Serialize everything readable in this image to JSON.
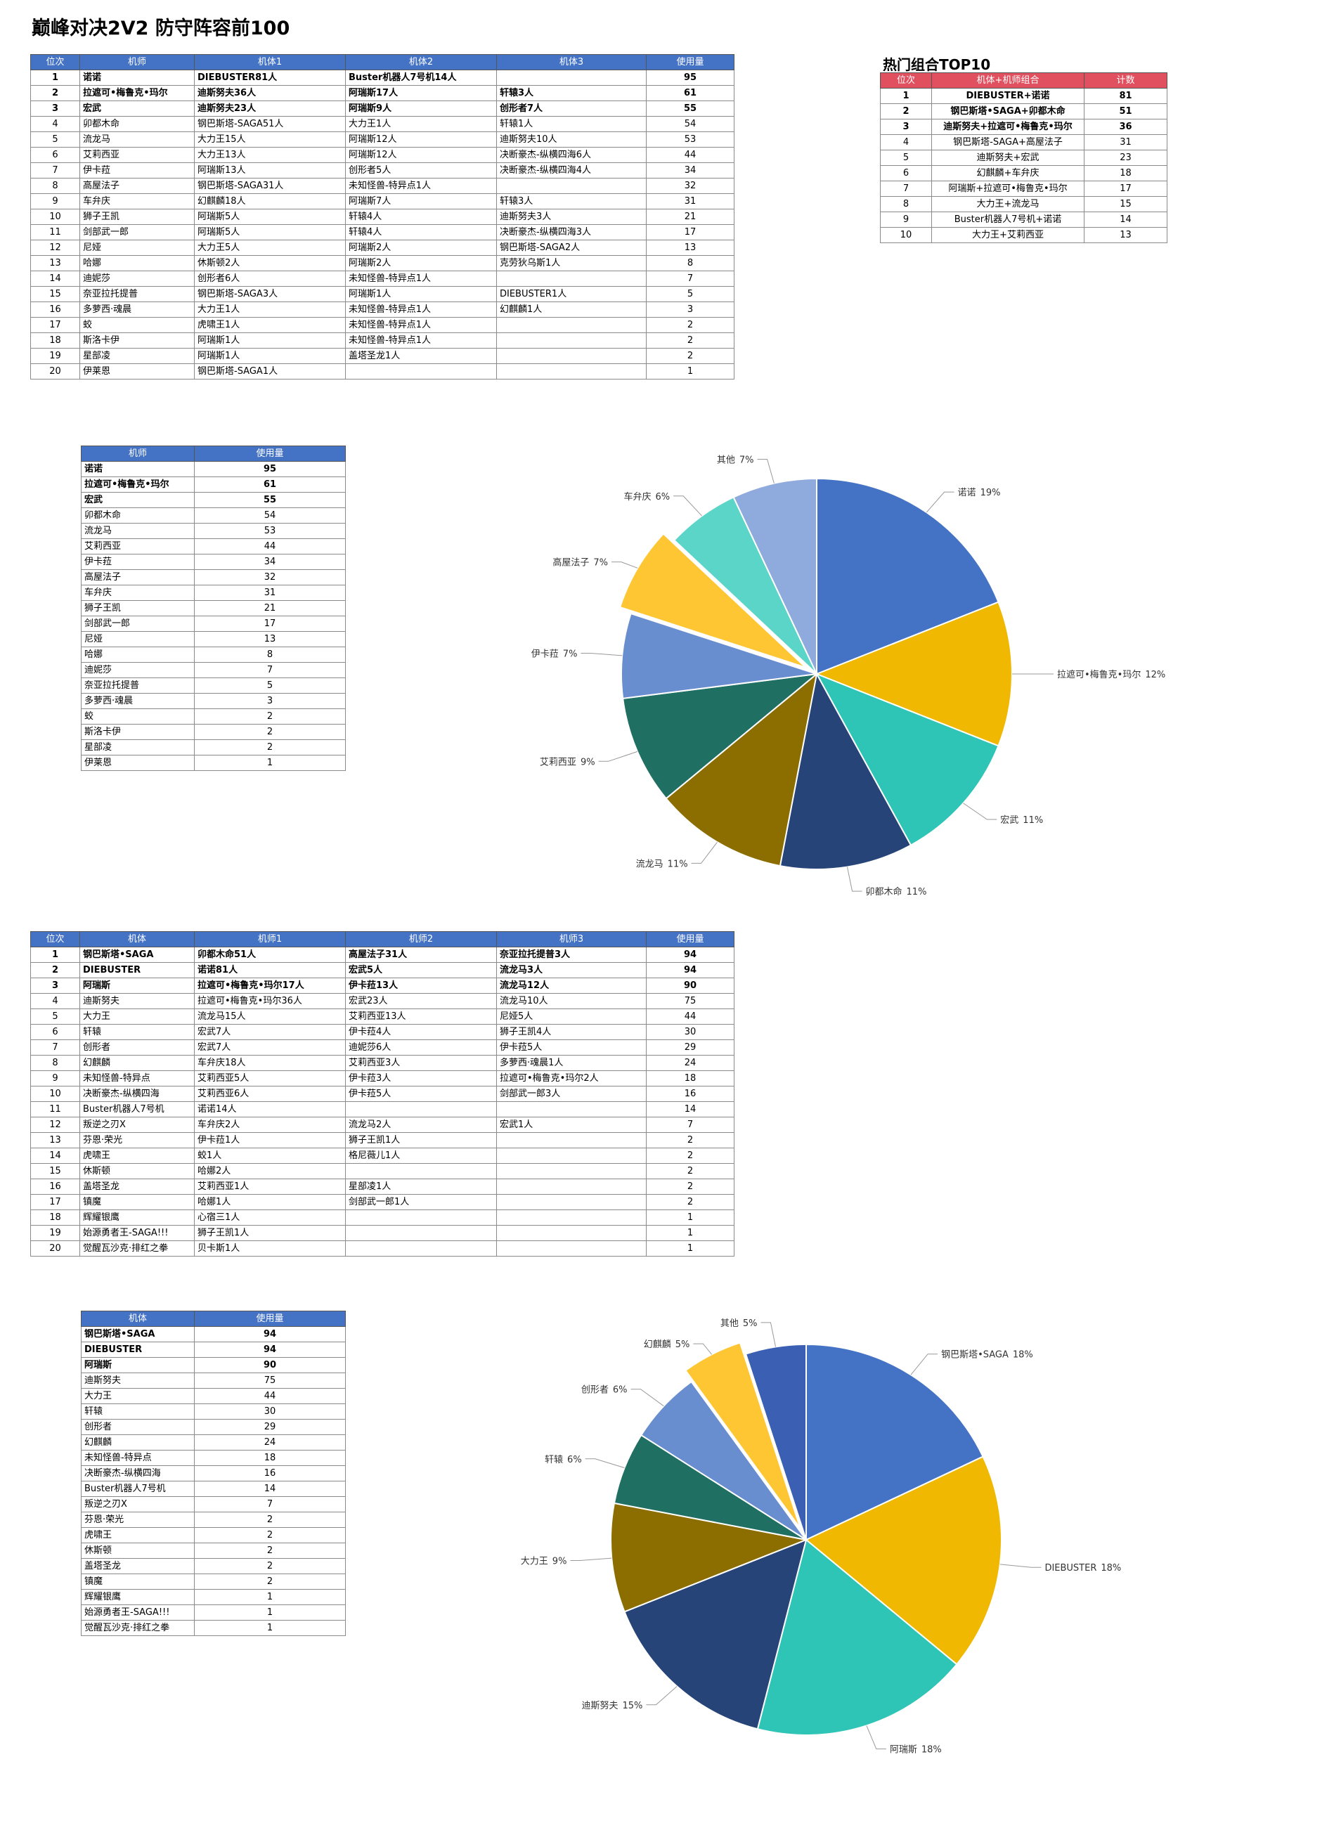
{
  "title": "巅峰对决2V2 防守阵容前100",
  "table1": {
    "header": [
      "位次",
      "机师",
      "机体1",
      "机体2",
      "机体3",
      "使用量"
    ],
    "rows": [
      [
        1,
        "诺诺",
        "DIEBUSTER81人",
        "Buster机器人7号机14人",
        null,
        95
      ],
      [
        2,
        "拉遮可•梅鲁克•玛尔",
        "迪斯努夫36人",
        "阿瑞斯17人",
        "轩辕3人",
        61
      ],
      [
        3,
        "宏武",
        "迪斯努夫23人",
        "阿瑞斯9人",
        "创形者7人",
        55
      ],
      [
        4,
        "卯都木命",
        "钢巴斯塔-SAGA51人",
        "大力王1人",
        "轩辕1人",
        54
      ],
      [
        5,
        "流龙马",
        "大力王15人",
        "阿瑞斯12人",
        "迪斯努夫10人",
        53
      ],
      [
        6,
        "艾莉西亚",
        "大力王13人",
        "阿瑞斯12人",
        "决断豪杰-纵横四海6人",
        44
      ],
      [
        7,
        "伊卡菈",
        "阿瑞斯13人",
        "创形者5人",
        "决断豪杰-纵横四海4人",
        34
      ],
      [
        8,
        "高屋法子",
        "钢巴斯塔-SAGA31人",
        "未知怪兽-特异点1人",
        null,
        32
      ],
      [
        9,
        "车弁庆",
        "幻麒麟18人",
        "阿瑞斯7人",
        "轩辕3人",
        31
      ],
      [
        10,
        "狮子王凯",
        "阿瑞斯5人",
        "轩辕4人",
        "迪斯努夫3人",
        21
      ],
      [
        11,
        "剑部武一郎",
        "阿瑞斯5人",
        "轩辕4人",
        "决断豪杰-纵横四海3人",
        17
      ],
      [
        12,
        "尼娅",
        "大力王5人",
        "阿瑞斯2人",
        "钢巴斯塔-SAGA2人",
        13
      ],
      [
        13,
        "哈娜",
        "休斯顿2人",
        "阿瑞斯2人",
        "克劳狄乌斯1人",
        8
      ],
      [
        14,
        "迪妮莎",
        "创形者6人",
        "未知怪兽-特异点1人",
        null,
        7
      ],
      [
        15,
        "奈亚拉托提普",
        "钢巴斯塔-SAGA3人",
        "阿瑞斯1人",
        "DIEBUSTER1人",
        5
      ],
      [
        16,
        "多萝西·魂晨",
        "大力王1人",
        "未知怪兽-特异点1人",
        "幻麒麟1人",
        3
      ],
      [
        17,
        "蛟",
        "虎啸王1人",
        "未知怪兽-特异点1人",
        null,
        2
      ],
      [
        18,
        "斯洛卡伊",
        "阿瑞斯1人",
        "未知怪兽-特异点1人",
        null,
        2
      ],
      [
        19,
        "星部凌",
        "阿瑞斯1人",
        "盖塔圣龙1人",
        null,
        2
      ],
      [
        20,
        "伊莱恩",
        "钢巴斯塔-SAGA1人",
        null,
        null,
        1
      ]
    ]
  },
  "top10": {
    "title": "热门组合TOP10",
    "header": [
      "位次",
      "机体+机师组合",
      "计数"
    ],
    "rows": [
      [
        1,
        "DIEBUSTER+诺诺",
        81
      ],
      [
        2,
        "钢巴斯塔•SAGA+卯都木命",
        51
      ],
      [
        3,
        "迪斯努夫+拉遮可•梅鲁克•玛尔",
        36
      ],
      [
        4,
        "钢巴斯塔-SAGA+高屋法子",
        31
      ],
      [
        5,
        "迪斯努夫+宏武",
        23
      ],
      [
        6,
        "幻麒麟+车弁庆",
        18
      ],
      [
        7,
        "阿瑞斯+拉遮可•梅鲁克•玛尔",
        17
      ],
      [
        8,
        "大力王+流龙马",
        15
      ],
      [
        9,
        "Buster机器人7号机+诺诺",
        14
      ],
      [
        10,
        "大力王+艾莉西亚",
        13
      ]
    ]
  },
  "table2": {
    "header": [
      "位次",
      "机体",
      "机师1",
      "机师2",
      "机师3",
      "使用量"
    ],
    "rows": [
      [
        1,
        "钢巴斯塔•SAGA",
        "卯都木命51人",
        "高屋法子31人",
        "奈亚拉托提普3人",
        94
      ],
      [
        2,
        "DIEBUSTER",
        "诺诺81人",
        "宏武5人",
        "流龙马3人",
        94
      ],
      [
        3,
        "阿瑞斯",
        "拉遮可•梅鲁克•玛尔17人",
        "伊卡菈13人",
        "流龙马12人",
        90
      ],
      [
        4,
        "迪斯努夫",
        "拉遮可•梅鲁克•玛尔36人",
        "宏武23人",
        "流龙马10人",
        75
      ],
      [
        5,
        "大力王",
        "流龙马15人",
        "艾莉西亚13人",
        "尼娅5人",
        44
      ],
      [
        6,
        "轩辕",
        "宏武7人",
        "伊卡菈4人",
        "狮子王凯4人",
        30
      ],
      [
        7,
        "创形者",
        "宏武7人",
        "迪妮莎6人",
        "伊卡菈5人",
        29
      ],
      [
        8,
        "幻麒麟",
        "车弁庆18人",
        "艾莉西亚3人",
        "多萝西·魂晨1人",
        24
      ],
      [
        9,
        "未知怪兽-特异点",
        "艾莉西亚5人",
        "伊卡菈3人",
        "拉遮可•梅鲁克•玛尔2人",
        18
      ],
      [
        10,
        "决断豪杰-纵横四海",
        "艾莉西亚6人",
        "伊卡菈5人",
        "剑部武一郎3人",
        16
      ],
      [
        11,
        "Buster机器人7号机",
        "诺诺14人",
        null,
        null,
        14
      ],
      [
        12,
        "叛逆之刃X",
        "车弁庆2人",
        "流龙马2人",
        "宏武1人",
        7
      ],
      [
        13,
        "芬恩·荣光",
        "伊卡菈1人",
        "狮子王凯1人",
        null,
        2
      ],
      [
        14,
        "虎啸王",
        "蛟1人",
        "格尼薇儿1人",
        null,
        2
      ],
      [
        15,
        "休斯顿",
        "哈娜2人",
        null,
        null,
        2
      ],
      [
        16,
        "盖塔圣龙",
        "艾莉西亚1人",
        "星部凌1人",
        null,
        2
      ],
      [
        17,
        "镇魔",
        "哈娜1人",
        "剑部武一郎1人",
        null,
        2
      ],
      [
        18,
        "辉耀银鹰",
        "心宿三1人",
        null,
        null,
        1
      ],
      [
        19,
        "始源勇者王-SAGA!!!",
        "狮子王凯1人",
        null,
        null,
        1
      ],
      [
        20,
        "觉醒瓦沙克·排红之拳",
        "贝卡斯1人",
        null,
        null,
        1
      ]
    ]
  },
  "chart_data": [
    {
      "type": "pie",
      "categories": [
        "诺诺",
        "拉遮可•梅鲁克•玛尔",
        "宏武",
        "卯都木命",
        "流龙马",
        "艾莉西亚",
        "伊卡菈",
        "高屋法子",
        "车弁庆",
        "其他"
      ],
      "values": [
        19,
        12,
        11,
        11,
        11,
        9,
        7,
        7,
        6,
        7
      ],
      "value_labels": [
        "19%",
        "12%",
        "11%",
        "11%",
        "11%",
        "9%",
        "7%",
        "7%",
        "6%",
        "7%"
      ],
      "colors": [
        "#4472c4",
        "#f0b800",
        "#2ec4b6",
        "#264478",
        "#8b6d00",
        "#1f6f62",
        "#698ed0",
        "#ffc633",
        "#5bd5c8",
        "#8faadc"
      ],
      "exploded": "高屋法子"
    },
    {
      "type": "pie",
      "categories": [
        "钢巴斯塔•SAGA",
        "DIEBUSTER",
        "阿瑞斯",
        "迪斯努夫",
        "大力王",
        "轩辕",
        "创形者",
        "幻麒麟",
        "其他"
      ],
      "values": [
        18,
        18,
        18,
        15,
        9,
        6,
        6,
        5,
        5
      ],
      "value_labels": [
        "18%",
        "18%",
        "18%",
        "15%",
        "9%",
        "6%",
        "6%",
        "5%",
        "5%"
      ],
      "colors": [
        "#4472c4",
        "#f0b800",
        "#2ec4b6",
        "#264478",
        "#8b6d00",
        "#1f6f62",
        "#698ed0",
        "#ffc633",
        "#3a5fb3"
      ],
      "exploded": "幻麒麟"
    }
  ]
}
